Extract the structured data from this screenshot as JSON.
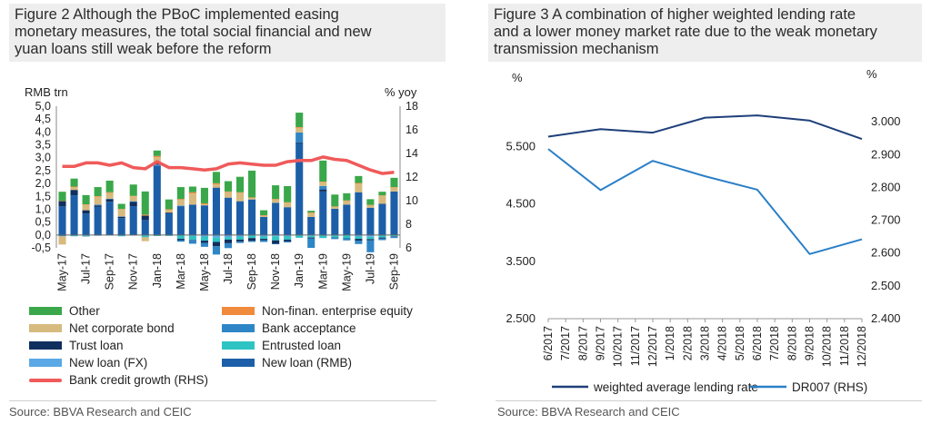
{
  "left": {
    "title_lines": [
      "Figure 2 Although the PBoC implemented easing",
      "monetary measures, the total social financial and new",
      "yuan loans still weak before the reform"
    ],
    "source": "Source: BBVA Research and CEIC"
  },
  "right": {
    "title_lines": [
      "Figure 3 A combination of higher weighted lending rate",
      "and a lower money market rate due to the weak monetary",
      "transmission mechanism"
    ],
    "source": "Source: BBVA Research and CEIC"
  },
  "chart_data": [
    {
      "type": "bar",
      "stacked": true,
      "ylabel": "RMB trn",
      "y2label": "% yoy",
      "ylim": [
        -0.5,
        5.0
      ],
      "y2lim": [
        6,
        18
      ],
      "yticks": [
        "5,0",
        "4,5",
        "4,0",
        "3,5",
        "3,0",
        "2,5",
        "2,0",
        "1,5",
        "1,0",
        "0,5",
        "0,0",
        "-0,5"
      ],
      "y2ticks": [
        "18",
        "16",
        "14",
        "12",
        "10",
        "8",
        "6"
      ],
      "categories": [
        "May-17",
        "Jun-17",
        "Jul-17",
        "Aug-17",
        "Sep-17",
        "Oct-17",
        "Nov-17",
        "Dec-17",
        "Jan-18",
        "Feb-18",
        "Mar-18",
        "Apr-18",
        "May-18",
        "Jun-18",
        "Jul-18",
        "Aug-18",
        "Sep-18",
        "Oct-18",
        "Nov-18",
        "Dec-18",
        "Jan-19",
        "Feb-19",
        "Mar-19",
        "Apr-19",
        "May-19",
        "Jun-19",
        "Jul-19",
        "Aug-19",
        "Sep-19"
      ],
      "xticklabels": [
        "May-17",
        "Jul-17",
        "Sep-17",
        "Nov-17",
        "Jan-18",
        "Mar-18",
        "May-18",
        "Jul-18",
        "Sep-18",
        "Nov-18",
        "Jan-19",
        "Mar-19",
        "May-19",
        "Jul-19",
        "Sep-19"
      ],
      "series": [
        {
          "name": "New loan (RMB)",
          "color": "#1c5fa8",
          "values": [
            1.11,
            1.54,
            0.83,
            1.09,
            1.27,
            0.66,
            1.12,
            0.58,
            2.69,
            0.84,
            1.12,
            1.18,
            1.15,
            1.84,
            1.45,
            1.31,
            1.38,
            0.7,
            1.25,
            1.08,
            3.57,
            0.7,
            1.69,
            1.02,
            1.18,
            1.66,
            1.06,
            1.21,
            1.69
          ]
        },
        {
          "name": "New loan (FX)",
          "color": "#5aa9e6",
          "values": [
            0.0,
            -0.02,
            -0.02,
            -0.03,
            0.01,
            -0.01,
            0.0,
            -0.02,
            0.04,
            -0.02,
            0.02,
            -0.04,
            -0.06,
            -0.1,
            -0.09,
            -0.06,
            -0.02,
            -0.06,
            -0.05,
            -0.04,
            -0.02,
            -0.03,
            0.0,
            -0.01,
            -0.02,
            -0.06,
            -0.07,
            -0.01,
            0.0
          ]
        },
        {
          "name": "Entrusted loan",
          "color": "#2ec4c4",
          "values": [
            0.0,
            -0.03,
            -0.02,
            0.0,
            -0.02,
            -0.04,
            -0.02,
            -0.07,
            -0.04,
            -0.01,
            -0.15,
            -0.15,
            -0.16,
            -0.17,
            -0.09,
            -0.12,
            -0.1,
            -0.09,
            -0.16,
            -0.14,
            -0.09,
            -0.07,
            -0.12,
            -0.09,
            -0.11,
            -0.09,
            -0.09,
            -0.09,
            -0.05
          ]
        },
        {
          "name": "Trust loan",
          "color": "#0f2f5f",
          "values": [
            0.21,
            0.21,
            0.13,
            0.06,
            0.11,
            0.05,
            0.16,
            0.17,
            0.06,
            0.03,
            -0.05,
            -0.02,
            -0.09,
            -0.17,
            -0.14,
            -0.07,
            -0.11,
            -0.05,
            -0.13,
            -0.07,
            0.03,
            -0.03,
            0.08,
            -0.01,
            -0.01,
            -0.07,
            -0.05,
            -0.03,
            -0.02
          ]
        },
        {
          "name": "Bank acceptance",
          "color": "#2f86c6",
          "values": [
            -0.05,
            0.0,
            -0.01,
            0.03,
            0.02,
            0.01,
            0.03,
            0.0,
            0.05,
            0.0,
            -0.06,
            -0.13,
            -0.15,
            -0.32,
            -0.19,
            -0.06,
            -0.04,
            -0.07,
            -0.02,
            -0.04,
            0.38,
            -0.37,
            0.13,
            -0.05,
            -0.07,
            -0.13,
            -0.46,
            -0.07,
            -0.05
          ]
        },
        {
          "name": "Net corporate bond",
          "color": "#d7ba7d",
          "values": [
            -0.32,
            0.12,
            0.21,
            0.31,
            0.22,
            0.27,
            0.19,
            -0.15,
            0.18,
            0.1,
            0.23,
            0.43,
            0.04,
            0.13,
            0.22,
            0.34,
            0.07,
            0.05,
            0.14,
            0.17,
            0.18,
            0.16,
            0.15,
            0.08,
            0.14,
            0.33,
            0.1,
            0.31,
            0.15
          ]
        },
        {
          "name": "Non-finan. enterprise equity",
          "color": "#f08a3c",
          "values": [
            0.01,
            0.01,
            0.02,
            0.02,
            0.03,
            0.02,
            0.02,
            0.04,
            0.05,
            0.03,
            0.03,
            0.05,
            0.04,
            0.04,
            0.02,
            0.01,
            0.01,
            0.02,
            0.01,
            0.02,
            0.03,
            0.01,
            0.02,
            0.01,
            0.02,
            0.03,
            0.01,
            0.02,
            0.02
          ]
        },
        {
          "name": "Other",
          "color": "#3aa84a",
          "values": [
            0.35,
            0.31,
            0.36,
            0.35,
            0.45,
            0.2,
            0.44,
            0.9,
            0.21,
            0.38,
            0.46,
            0.22,
            0.6,
            0.44,
            0.4,
            0.6,
            1.04,
            0.19,
            0.53,
            0.63,
            0.56,
            0.07,
            0.82,
            0.46,
            0.28,
            0.27,
            0.22,
            0.14,
            0.36
          ]
        }
      ],
      "line": {
        "name": "Bank credit growth (RHS)",
        "color": "#f05a5a",
        "values": [
          12.9,
          12.9,
          13.2,
          13.2,
          13.0,
          13.2,
          12.8,
          12.7,
          13.3,
          12.8,
          12.8,
          12.7,
          12.6,
          12.7,
          13.1,
          13.2,
          13.1,
          13.0,
          13.0,
          13.3,
          13.4,
          13.4,
          13.7,
          13.5,
          13.4,
          13.0,
          12.6,
          12.3,
          12.4
        ]
      },
      "legend_position": "bottom",
      "legend_order": [
        "Other",
        "Non-finan. enterprise equity",
        "Net corporate bond",
        "Bank acceptance",
        "Trust loan",
        "Entrusted loan",
        "New loan (FX)",
        "New loan (RMB)",
        "Bank credit growth (RHS)"
      ]
    },
    {
      "type": "line",
      "ylabel": "%",
      "y2label": "%",
      "ylim": [
        2.5,
        6.5
      ],
      "y2lim": [
        2.4,
        3.1
      ],
      "yticks": [
        "5.500",
        "4.500",
        "3.500",
        "2.500"
      ],
      "y2ticks": [
        "3.000",
        "2.900",
        "2.800",
        "2.700",
        "2.600",
        "2.500",
        "2.400"
      ],
      "categories": [
        "6/2017",
        "7/2017",
        "8/2017",
        "9/2017",
        "10/2017",
        "11/2017",
        "12/2017",
        "1/2018",
        "2/2018",
        "3/2018",
        "4/2018",
        "5/2018",
        "6/2018",
        "7/2018",
        "8/2018",
        "9/2018",
        "10/2018",
        "11/2018",
        "12/2018"
      ],
      "series": [
        {
          "name": "weighted average lending rate",
          "axis": "left",
          "color": "#1f3f7a",
          "points": [
            [
              0,
              5.67
            ],
            [
              3,
              5.8
            ],
            [
              6,
              5.74
            ],
            [
              9,
              6.0
            ],
            [
              12,
              6.04
            ],
            [
              15,
              5.95
            ],
            [
              18,
              5.63
            ]
          ]
        },
        {
          "name": "DR007 (RHS)",
          "axis": "right",
          "color": "#2a7fc7",
          "points": [
            [
              0,
              2.917
            ],
            [
              3,
              2.792
            ],
            [
              6,
              2.881
            ],
            [
              9,
              2.834
            ],
            [
              12,
              2.793
            ],
            [
              15,
              2.597
            ],
            [
              18,
              2.642
            ]
          ]
        }
      ],
      "legend_position": "bottom"
    }
  ]
}
